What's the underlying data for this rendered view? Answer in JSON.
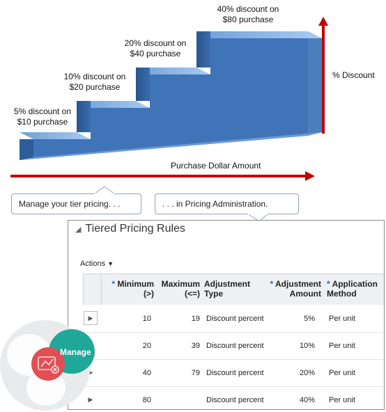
{
  "diagram": {
    "steps": [
      {
        "line1": "5% discount on",
        "line2": "$10 purchase"
      },
      {
        "line1": "10% discount on",
        "line2": "$20 purchase"
      },
      {
        "line1": "20% discount on",
        "line2": "$40 purchase"
      },
      {
        "line1": "40% discount on",
        "line2": "$80 purchase"
      }
    ],
    "x_axis_label": "Purchase Dollar Amount",
    "y_axis_label": "% Discount",
    "colors": {
      "step_front": "#2d5d99",
      "step_top": "#8fbaea",
      "arrow": "#c00000"
    }
  },
  "callouts": {
    "left": "Manage your tier pricing. . .",
    "right": ". . . in Pricing Administration."
  },
  "table": {
    "title": "Tiered Pricing Rules",
    "actions_label": "Actions",
    "columns": [
      {
        "label1": "Minimum",
        "label2": "(>)",
        "required": true
      },
      {
        "label1": "Maximum",
        "label2": "(<=)",
        "required": false
      },
      {
        "label1": "Adjustment",
        "label2": "Type",
        "required": false
      },
      {
        "label1": "Adjustment",
        "label2": "Amount",
        "required": true
      },
      {
        "label1": "Application",
        "label2": "Method",
        "required": true
      }
    ],
    "rows": [
      {
        "min": "10",
        "max": "19",
        "type": "Discount percent",
        "amount": "5",
        "unit": "%",
        "method": "Per unit"
      },
      {
        "min": "20",
        "max": "39",
        "type": "Discount percent",
        "amount": "10",
        "unit": "%",
        "method": "Per unit"
      },
      {
        "min": "40",
        "max": "79",
        "type": "Discount percent",
        "amount": "20",
        "unit": "%",
        "method": "Per unit"
      },
      {
        "min": "80",
        "max": "",
        "type": "Discount percent",
        "amount": "40",
        "unit": "%",
        "method": "Per unit"
      }
    ]
  },
  "badge": {
    "label": "Manage",
    "icon": "pricing-icon",
    "color_teal": "#1fa89a",
    "color_red": "#e14f55"
  }
}
